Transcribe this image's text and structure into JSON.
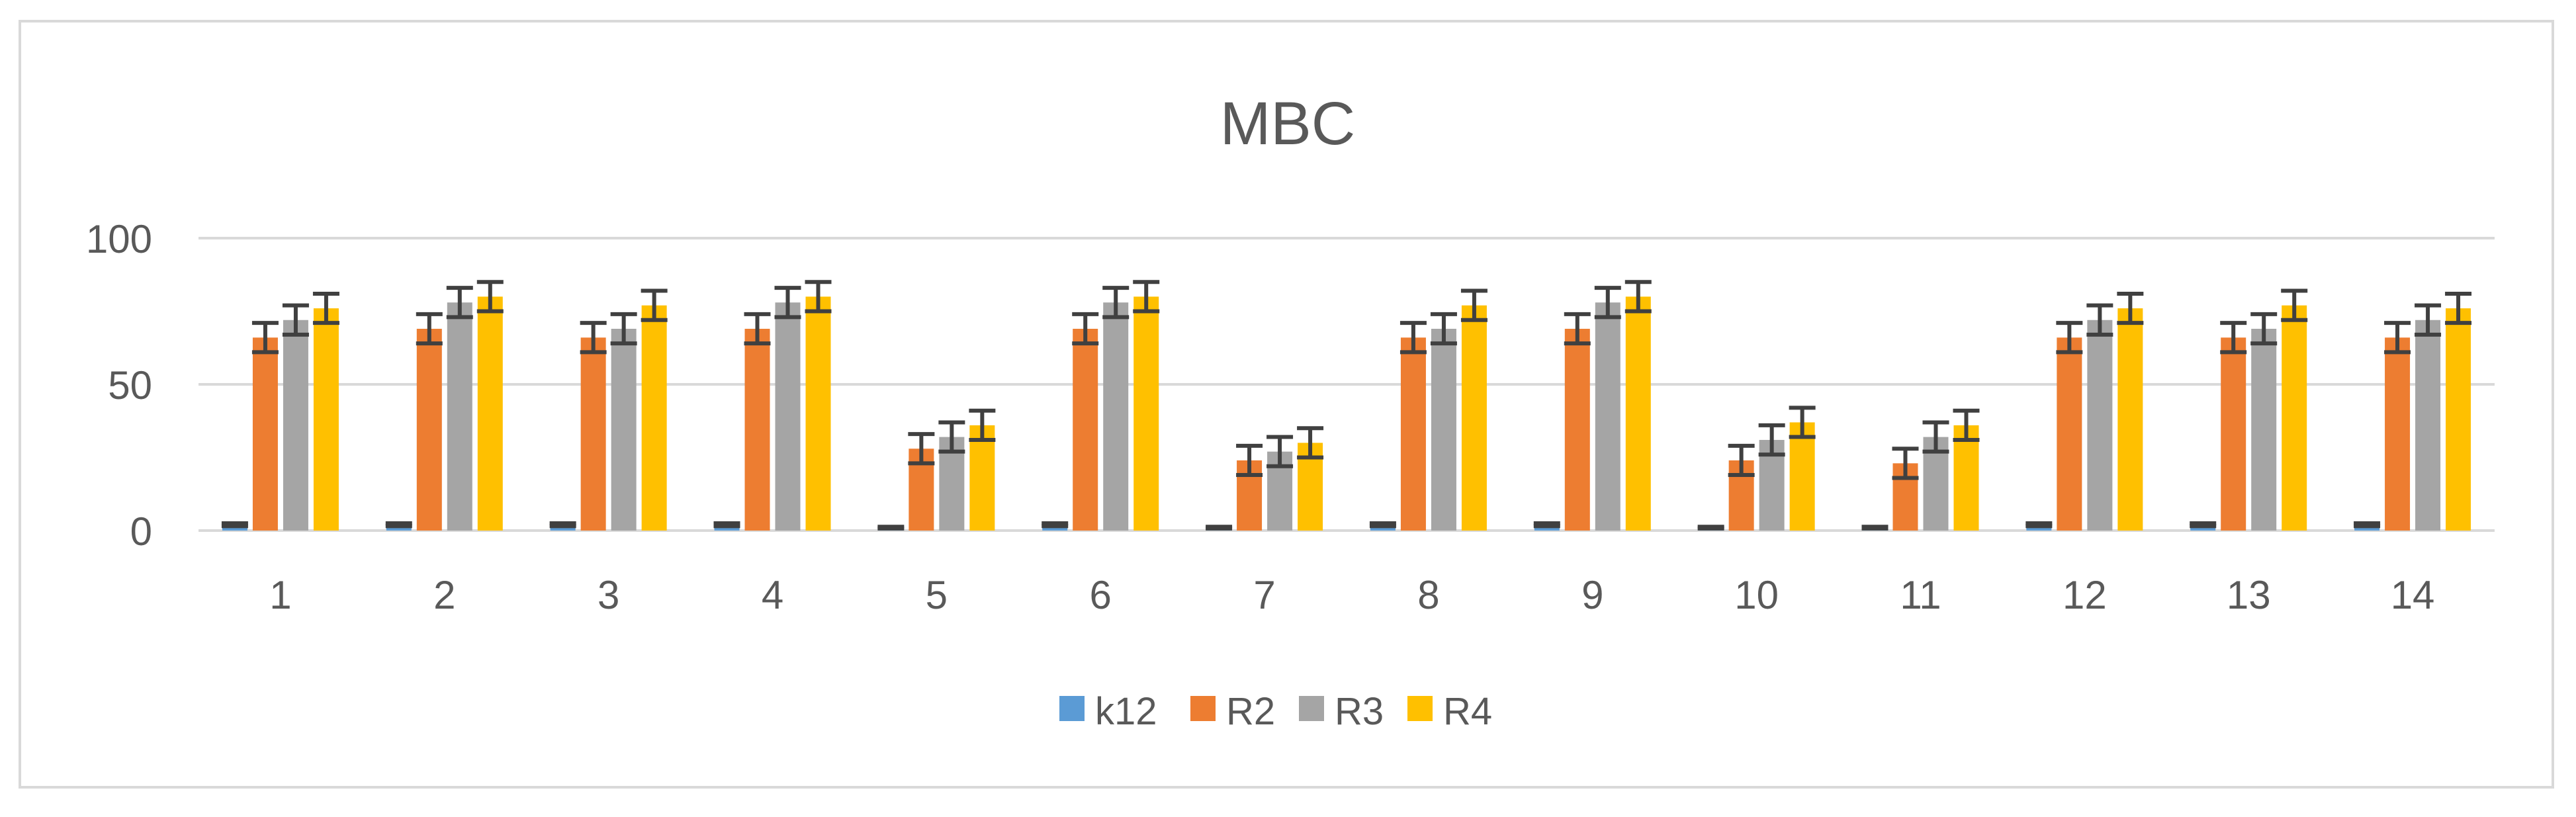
{
  "chart_data": {
    "type": "bar",
    "title": "MBC",
    "xlabel": "",
    "ylabel": "",
    "ylim": [
      0,
      100
    ],
    "yticks": [
      0,
      50,
      100
    ],
    "grid": true,
    "legend_position": "bottom",
    "categories": [
      "1",
      "2",
      "3",
      "4",
      "5",
      "6",
      "7",
      "8",
      "9",
      "10",
      "11",
      "12",
      "13",
      "14"
    ],
    "series": [
      {
        "name": "k12",
        "color": "#5b9bd5",
        "values": [
          2,
          2,
          2,
          2,
          1,
          2,
          1,
          2,
          2,
          1,
          1,
          2,
          2,
          2
        ],
        "error": [
          0.5,
          0.5,
          0.5,
          0.5,
          0.3,
          0.5,
          0.3,
          0.5,
          0.5,
          0.3,
          0.3,
          0.5,
          0.5,
          0.5
        ]
      },
      {
        "name": "R2",
        "color": "#ed7d31",
        "values": [
          66,
          69,
          66,
          69,
          28,
          69,
          24,
          66,
          69,
          24,
          23,
          66,
          66,
          66
        ],
        "error": [
          5,
          5,
          5,
          5,
          5,
          5,
          5,
          5,
          5,
          5,
          5,
          5,
          5,
          5
        ]
      },
      {
        "name": "R3",
        "color": "#a5a5a5",
        "values": [
          72,
          78,
          69,
          78,
          32,
          78,
          27,
          69,
          78,
          31,
          32,
          72,
          69,
          72
        ],
        "error": [
          5,
          5,
          5,
          5,
          5,
          5,
          5,
          5,
          5,
          5,
          5,
          5,
          5,
          5
        ]
      },
      {
        "name": "R4",
        "color": "#ffc000",
        "values": [
          76,
          80,
          77,
          80,
          36,
          80,
          30,
          77,
          80,
          37,
          36,
          76,
          77,
          76
        ],
        "error": [
          5,
          5,
          5,
          5,
          5,
          5,
          5,
          5,
          5,
          5,
          5,
          5,
          5,
          5
        ]
      }
    ],
    "colors": {
      "grid": "#d9d9d9",
      "text": "#595959",
      "error_bar": "#404040",
      "border": "#d9d9d9"
    }
  }
}
